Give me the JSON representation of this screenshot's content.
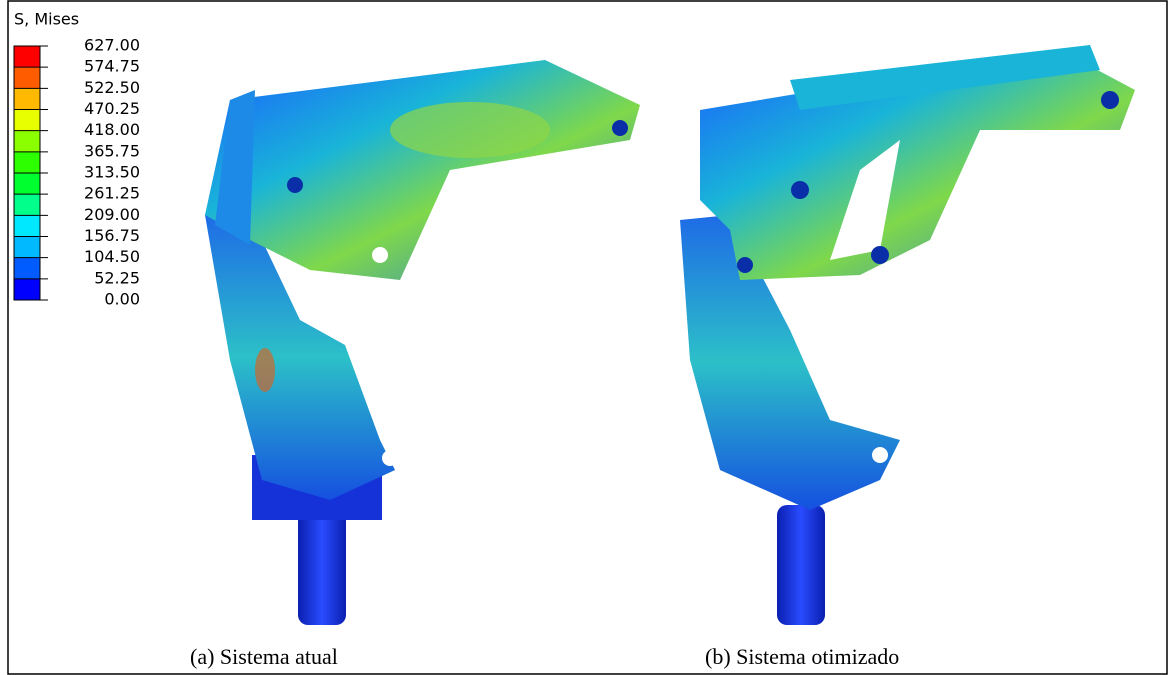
{
  "legend": {
    "title": "S, Mises",
    "ticks": [
      {
        "value": 627,
        "label": "627.00"
      },
      {
        "value": 574.75,
        "label": "574.75"
      },
      {
        "value": 522.5,
        "label": "522.50"
      },
      {
        "value": 470.25,
        "label": "470.25"
      },
      {
        "value": 418,
        "label": "418.00"
      },
      {
        "value": 365.75,
        "label": "365.75"
      },
      {
        "value": 313.5,
        "label": "313.50"
      },
      {
        "value": 261.25,
        "label": "261.25"
      },
      {
        "value": 209,
        "label": "209.00"
      },
      {
        "value": 156.75,
        "label": "156.75"
      },
      {
        "value": 104.5,
        "label": "104.50"
      },
      {
        "value": 52.25,
        "label": "52.25"
      },
      {
        "value": 0,
        "label": "0.00"
      }
    ],
    "colors": [
      "#ff0000",
      "#ff5c00",
      "#ffb900",
      "#e8ff00",
      "#8bff00",
      "#2eff00",
      "#00ff2e",
      "#00ff8b",
      "#00e8ff",
      "#00b9ff",
      "#005cff",
      "#0000ff"
    ]
  },
  "panels": [
    {
      "caption": "(a) Sistema atual"
    },
    {
      "caption": "(b) Sistema otimizado"
    }
  ]
}
